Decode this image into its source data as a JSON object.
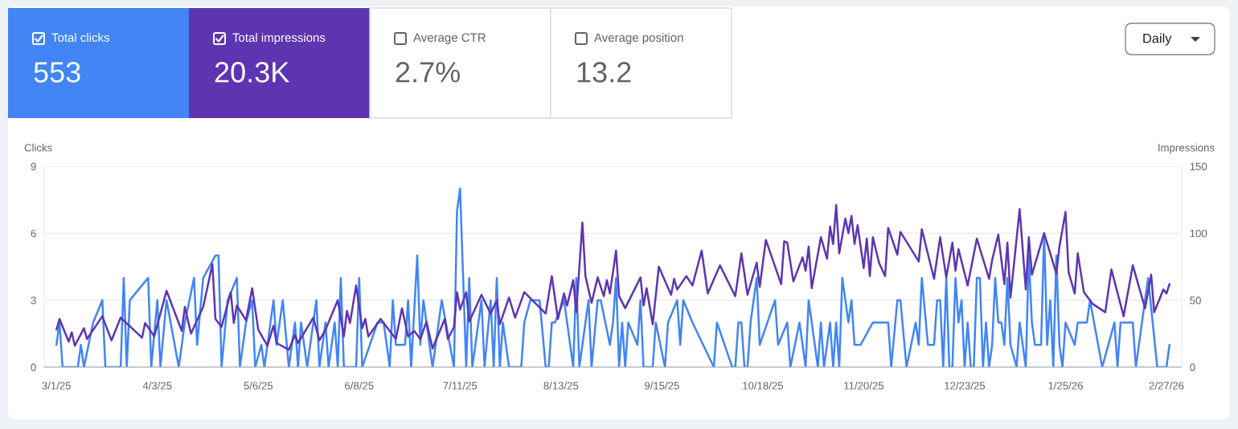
{
  "chart_data": {
    "type": "line",
    "ylabel": "Clicks",
    "y2label": "Impressions",
    "xlim": [
      "2025-02-25",
      "2026-03-04"
    ],
    "xticks": [
      {
        "value": "2025-03-01",
        "label": "3/1/25"
      },
      {
        "value": "2025-04-03",
        "label": "4/3/25"
      },
      {
        "value": "2025-05-06",
        "label": "5/6/25"
      },
      {
        "value": "2025-06-08",
        "label": "6/8/25"
      },
      {
        "value": "2025-07-11",
        "label": "7/11/25"
      },
      {
        "value": "2025-08-13",
        "label": "8/13/25"
      },
      {
        "value": "2025-09-15",
        "label": "9/15/25"
      },
      {
        "value": "2025-10-18",
        "label": "10/18/25"
      },
      {
        "value": "2025-11-20",
        "label": "11/20/25"
      },
      {
        "value": "2025-12-23",
        "label": "12/23/25"
      },
      {
        "value": "2026-01-25",
        "label": "1/25/26"
      },
      {
        "value": "2026-02-27",
        "label": "2/27/26"
      }
    ],
    "ylim": [
      0,
      9
    ],
    "yticks": [
      0,
      3,
      6,
      9
    ],
    "y2lim": [
      0,
      150
    ],
    "y2ticks": [
      0,
      50,
      100,
      150
    ],
    "grid": "y",
    "legend": "top left",
    "annotations": [
      "553",
      "20.3K",
      "Average CTR",
      "2.7%",
      "Average position",
      "13.2",
      "Daily"
    ],
    "series": [
      {
        "name": "Total clicks",
        "color": "#4285f4",
        "axis": "y",
        "x": [
          "2025-03-01",
          "2025-03-02",
          "2025-03-03",
          "2025-03-08",
          "2025-03-09",
          "2025-03-10",
          "2025-03-13",
          "2025-03-16",
          "2025-03-17",
          "2025-03-22",
          "2025-03-23",
          "2025-03-24",
          "2025-03-25",
          "2025-03-31",
          "2025-04-01",
          "2025-04-03",
          "2025-04-04",
          "2025-04-06",
          "2025-04-10",
          "2025-04-12",
          "2025-04-15",
          "2025-04-16",
          "2025-04-18",
          "2025-04-22",
          "2025-04-23",
          "2025-04-24",
          "2025-04-26",
          "2025-04-29",
          "2025-04-30",
          "2025-05-02",
          "2025-05-04",
          "2025-05-05",
          "2025-05-07",
          "2025-05-08",
          "2025-05-11",
          "2025-05-12",
          "2025-05-14",
          "2025-05-16",
          "2025-05-18",
          "2025-05-19",
          "2025-05-20",
          "2025-05-22",
          "2025-05-25",
          "2025-05-26",
          "2025-05-28",
          "2025-05-29",
          "2025-05-31",
          "2025-06-01",
          "2025-06-02",
          "2025-06-03",
          "2025-06-07",
          "2025-06-08",
          "2025-06-09",
          "2025-06-14",
          "2025-06-16",
          "2025-06-18",
          "2025-06-19",
          "2025-06-20",
          "2025-06-23",
          "2025-06-24",
          "2025-06-25",
          "2025-06-27",
          "2025-06-28",
          "2025-06-29",
          "2025-07-02",
          "2025-07-05",
          "2025-07-09",
          "2025-07-10",
          "2025-07-11",
          "2025-07-13",
          "2025-07-14",
          "2025-07-15",
          "2025-07-18",
          "2025-07-19",
          "2025-07-21",
          "2025-07-22",
          "2025-07-23",
          "2025-07-24",
          "2025-07-25",
          "2025-07-27",
          "2025-07-31",
          "2025-08-01",
          "2025-08-03",
          "2025-08-06",
          "2025-08-08",
          "2025-08-09",
          "2025-08-10",
          "2025-08-11",
          "2025-08-14",
          "2025-08-17",
          "2025-08-18",
          "2025-08-19",
          "2025-08-22",
          "2025-08-23",
          "2025-08-25",
          "2025-08-26",
          "2025-08-29",
          "2025-08-30",
          "2025-08-31",
          "2025-09-01",
          "2025-09-02",
          "2025-09-03",
          "2025-09-04",
          "2025-09-07",
          "2025-09-08",
          "2025-09-09",
          "2025-09-12",
          "2025-09-13",
          "2025-09-16",
          "2025-09-17",
          "2025-09-20",
          "2025-09-21",
          "2025-09-22",
          "2025-09-25",
          "2025-10-02",
          "2025-10-03",
          "2025-10-08",
          "2025-10-09",
          "2025-10-10",
          "2025-10-11",
          "2025-10-12",
          "2025-10-13",
          "2025-10-14",
          "2025-10-16",
          "2025-10-17",
          "2025-10-22",
          "2025-10-23",
          "2025-10-26",
          "2025-10-27",
          "2025-10-30",
          "2025-11-01",
          "2025-11-02",
          "2025-11-05",
          "2025-11-06",
          "2025-11-07",
          "2025-11-09",
          "2025-11-10",
          "2025-11-11",
          "2025-11-12",
          "2025-11-13",
          "2025-11-15",
          "2025-11-16",
          "2025-11-17",
          "2025-11-19",
          "2025-11-23",
          "2025-11-28",
          "2025-11-29",
          "2025-12-01",
          "2025-12-02",
          "2025-12-04",
          "2025-12-07",
          "2025-12-08",
          "2025-12-09",
          "2025-12-11",
          "2025-12-13",
          "2025-12-14",
          "2025-12-15",
          "2025-12-16",
          "2025-12-17",
          "2025-12-18",
          "2025-12-19",
          "2025-12-20",
          "2025-12-21",
          "2025-12-22",
          "2025-12-23",
          "2025-12-24",
          "2025-12-25",
          "2025-12-26",
          "2025-12-27",
          "2025-12-28",
          "2025-12-29",
          "2025-12-30",
          "2025-12-31",
          "2026-01-01",
          "2026-01-02",
          "2026-01-03",
          "2026-01-04",
          "2026-01-05",
          "2026-01-06",
          "2026-01-07",
          "2026-01-09",
          "2026-01-10",
          "2026-01-12",
          "2026-01-13",
          "2026-01-14",
          "2026-01-15",
          "2026-01-17",
          "2026-01-18",
          "2026-01-19",
          "2026-01-20",
          "2026-01-21",
          "2026-01-22",
          "2026-01-23",
          "2026-01-24",
          "2026-01-25",
          "2026-01-28",
          "2026-01-29",
          "2026-02-01",
          "2026-02-02",
          "2026-02-06",
          "2026-02-10",
          "2026-02-11",
          "2026-02-12",
          "2026-02-16",
          "2026-02-17",
          "2026-02-19",
          "2026-02-21",
          "2026-02-24",
          "2026-02-27",
          "2026-02-28"
        ],
        "values": [
          1,
          2,
          0,
          0,
          1,
          0,
          2,
          3,
          0,
          0,
          4,
          0,
          3,
          4,
          0,
          3,
          0,
          3,
          0,
          2,
          4,
          1,
          4,
          5,
          5,
          0,
          3,
          4,
          0,
          2,
          3,
          0,
          1,
          0,
          3,
          1,
          3,
          0,
          2,
          0,
          2,
          0,
          3,
          0,
          2,
          0,
          2,
          0,
          4,
          0,
          0,
          4,
          0,
          2,
          2,
          0,
          3,
          1,
          1,
          3,
          0,
          5,
          1,
          3,
          0,
          3,
          0,
          7,
          8,
          0,
          4,
          0,
          3,
          0,
          3,
          0,
          4,
          0,
          2,
          0,
          0,
          2,
          3,
          3,
          0,
          0,
          2,
          2,
          3,
          0,
          4,
          0,
          3,
          0,
          3,
          3,
          1,
          2,
          4,
          0,
          2,
          0,
          2,
          1,
          3,
          0,
          0,
          2,
          0,
          2,
          3,
          1,
          3,
          2,
          0,
          2,
          0,
          0,
          2,
          2,
          0,
          0,
          2,
          4,
          1,
          3,
          1,
          2,
          0,
          2,
          0,
          3,
          0,
          2,
          0,
          2,
          0,
          2,
          0,
          4,
          2,
          3,
          1,
          1,
          2,
          2,
          0,
          3,
          3,
          0,
          2,
          1,
          4,
          1,
          1,
          3,
          3,
          0,
          4,
          0,
          0,
          4,
          2,
          3,
          0,
          2,
          0,
          0,
          4,
          4,
          0,
          2,
          0,
          1,
          4,
          2,
          2,
          1,
          4,
          1,
          0,
          2,
          0,
          5,
          2,
          1,
          1,
          6,
          1,
          3,
          0,
          5,
          1,
          0,
          2,
          1,
          2,
          2,
          3,
          0,
          2,
          0,
          2,
          2,
          0,
          2,
          4,
          0,
          0,
          1
        ]
      },
      {
        "name": "Total impressions",
        "color": "#5e35b1",
        "axis": "y2",
        "x": [
          "2025-03-01",
          "2025-03-02",
          "2025-03-05",
          "2025-03-06",
          "2025-03-07",
          "2025-03-10",
          "2025-03-11",
          "2025-03-16",
          "2025-03-19",
          "2025-03-22",
          "2025-03-29",
          "2025-03-30",
          "2025-04-02",
          "2025-04-06",
          "2025-04-11",
          "2025-04-12",
          "2025-04-14",
          "2025-04-18",
          "2025-04-21",
          "2025-04-22",
          "2025-04-24",
          "2025-04-27",
          "2025-04-28",
          "2025-04-29",
          "2025-05-02",
          "2025-05-04",
          "2025-05-06",
          "2025-05-09",
          "2025-05-11",
          "2025-05-12",
          "2025-05-16",
          "2025-05-18",
          "2025-05-19",
          "2025-05-24",
          "2025-05-26",
          "2025-05-28",
          "2025-06-01",
          "2025-06-03",
          "2025-06-04",
          "2025-06-05",
          "2025-06-07",
          "2025-06-09",
          "2025-06-10",
          "2025-06-11",
          "2025-06-15",
          "2025-06-20",
          "2025-06-22",
          "2025-06-24",
          "2025-06-26",
          "2025-06-28",
          "2025-06-30",
          "2025-07-02",
          "2025-07-06",
          "2025-07-07",
          "2025-07-09",
          "2025-07-10",
          "2025-07-11",
          "2025-07-13",
          "2025-07-14",
          "2025-07-18",
          "2025-07-21",
          "2025-07-23",
          "2025-07-24",
          "2025-07-27",
          "2025-07-29",
          "2025-08-01",
          "2025-08-08",
          "2025-08-10",
          "2025-08-12",
          "2025-08-14",
          "2025-08-15",
          "2025-08-17",
          "2025-08-18",
          "2025-08-20",
          "2025-08-21",
          "2025-08-23",
          "2025-08-25",
          "2025-08-27",
          "2025-08-28",
          "2025-08-29",
          "2025-08-31",
          "2025-09-01",
          "2025-09-03",
          "2025-09-08",
          "2025-09-09",
          "2025-09-10",
          "2025-09-12",
          "2025-09-14",
          "2025-09-18",
          "2025-09-19",
          "2025-09-20",
          "2025-09-23",
          "2025-09-25",
          "2025-09-28",
          "2025-09-30",
          "2025-10-04",
          "2025-10-09",
          "2025-10-11",
          "2025-10-13",
          "2025-10-16",
          "2025-10-17",
          "2025-10-19",
          "2025-10-24",
          "2025-10-25",
          "2025-10-26",
          "2025-10-28",
          "2025-10-31",
          "2025-11-01",
          "2025-11-02",
          "2025-11-03",
          "2025-11-06",
          "2025-11-08",
          "2025-11-09",
          "2025-11-10",
          "2025-11-11",
          "2025-11-12",
          "2025-11-14",
          "2025-11-15",
          "2025-11-16",
          "2025-11-17",
          "2025-11-18",
          "2025-11-20",
          "2025-11-21",
          "2025-11-22",
          "2025-11-23",
          "2025-11-25",
          "2025-11-27",
          "2025-11-28",
          "2025-12-01",
          "2025-12-02",
          "2025-12-08",
          "2025-12-09",
          "2025-12-13",
          "2025-12-15",
          "2025-12-17",
          "2025-12-19",
          "2025-12-20",
          "2025-12-21",
          "2025-12-24",
          "2025-12-27",
          "2025-12-31",
          "2026-01-01",
          "2026-01-03",
          "2026-01-05",
          "2026-01-06",
          "2026-01-07",
          "2026-01-10",
          "2026-01-12",
          "2026-01-13",
          "2026-01-14",
          "2026-01-18",
          "2026-01-22",
          "2026-01-23",
          "2026-01-25",
          "2026-01-26",
          "2026-01-28",
          "2026-01-29",
          "2026-01-31",
          "2026-02-03",
          "2026-02-07",
          "2026-02-09",
          "2026-02-13",
          "2026-02-16",
          "2026-02-20",
          "2026-02-22",
          "2026-02-23",
          "2026-02-26",
          "2026-02-27",
          "2026-02-28"
        ],
        "values": [
          28,
          36,
          19,
          26,
          16,
          29,
          21,
          38,
          20,
          37,
          22,
          33,
          23,
          57,
          27,
          45,
          25,
          45,
          77,
          36,
          30,
          56,
          33,
          46,
          35,
          59,
          28,
          16,
          31,
          18,
          13,
          24,
          18,
          37,
          20,
          28,
          50,
          23,
          42,
          33,
          61,
          29,
          36,
          23,
          36,
          21,
          44,
          23,
          27,
          21,
          34,
          14,
          36,
          21,
          30,
          56,
          43,
          56,
          34,
          54,
          40,
          50,
          32,
          52,
          37,
          56,
          40,
          68,
          36,
          55,
          46,
          65,
          41,
          108,
          68,
          48,
          67,
          53,
          65,
          55,
          87,
          53,
          44,
          67,
          46,
          59,
          32,
          75,
          54,
          66,
          58,
          68,
          61,
          87,
          55,
          76,
          53,
          85,
          54,
          78,
          60,
          95,
          62,
          94,
          93,
          64,
          82,
          72,
          90,
          59,
          97,
          81,
          105,
          92,
          121,
          85,
          111,
          100,
          113,
          92,
          106,
          74,
          96,
          68,
          97,
          78,
          68,
          104,
          84,
          101,
          79,
          103,
          66,
          97,
          67,
          93,
          72,
          88,
          61,
          96,
          66,
          80,
          99,
          62,
          93,
          52,
          118,
          58,
          97,
          69,
          100,
          70,
          90,
          116,
          71,
          55,
          85,
          56,
          47,
          41,
          73,
          38,
          76,
          44,
          69,
          41,
          58,
          55,
          62
        ]
      }
    ]
  }
}
